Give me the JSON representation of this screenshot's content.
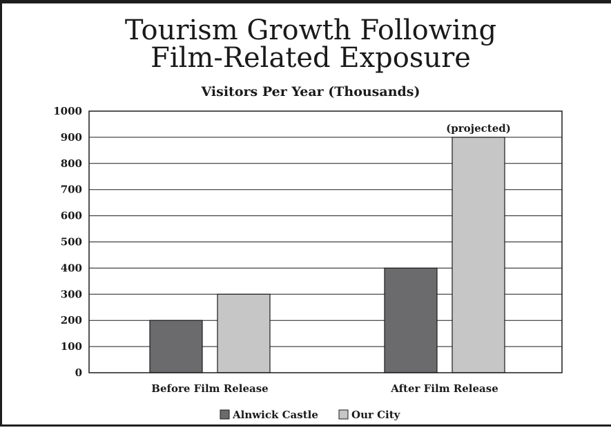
{
  "chart_data": {
    "type": "bar",
    "title_lines": [
      "Tourism Growth Following",
      "Film-Related Exposure"
    ],
    "subtitle": "Visitors Per Year (Thousands)",
    "categories": [
      "Before Film Release",
      "After Film Release"
    ],
    "series": [
      {
        "name": "Alnwick Castle",
        "values": [
          200,
          400
        ],
        "color": "#6b6b6d"
      },
      {
        "name": "Our City",
        "values": [
          300,
          900
        ],
        "color": "#c6c6c6"
      }
    ],
    "annotations": [
      {
        "series": "Our City",
        "category": "After Film Release",
        "text": "(projected)"
      }
    ],
    "ylim": [
      0,
      1000
    ],
    "yticks": [
      "0",
      "100",
      "200",
      "300",
      "400",
      "500",
      "600",
      "700",
      "800",
      "900",
      "1000"
    ],
    "grid": "horizontal",
    "legend_position": "bottom-center"
  }
}
